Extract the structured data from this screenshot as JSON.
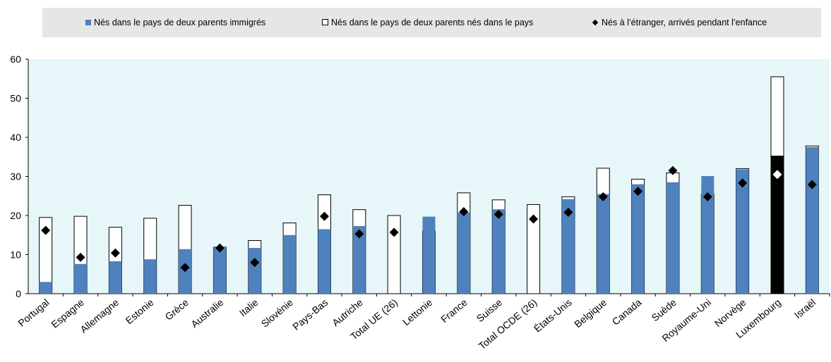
{
  "legend": {
    "item1": "Nés dans le pays de deux parents immigrés",
    "item2": "Nés dans le pays de deux parents nés dans le pays",
    "item3": "Nés à l’étranger, arrivés pendant l’enfance"
  },
  "colors": {
    "blue": "#4e81bd",
    "highlight_fill": "#000000",
    "plot_bg": "#e7f6f8",
    "legend_bg": "#e6e6e6"
  },
  "chart_data": {
    "type": "bar",
    "ylim": [
      0,
      60
    ],
    "yticks": [
      0,
      10,
      20,
      30,
      40,
      50,
      60
    ],
    "grid": false,
    "legend_position": "top",
    "categories": [
      "Portugal",
      "Espagne",
      "Allemagne",
      "Estonie",
      "Grèce",
      "Australie",
      "Italie",
      "Slovénie",
      "Pays-Bas",
      "Autriche",
      "Total UE (26)",
      "Lettonie",
      "France",
      "Suisse",
      "Total OCDE (26)",
      "États-Unis",
      "Belgique",
      "Canada",
      "Suède",
      "Royaume-Uni",
      "Norvège",
      "Luxembourg",
      "Israël"
    ],
    "highlight": "Luxembourg",
    "series": [
      {
        "name": "Nés dans le pays de deux parents immigrés",
        "kind": "bar",
        "values": [
          3,
          7.6,
          8.3,
          8.8,
          11.4,
          11.9,
          11.7,
          15,
          16.5,
          17.3,
          null,
          19.7,
          20.8,
          21.6,
          null,
          24.2,
          25.5,
          28,
          28.5,
          30.1,
          31.8,
          35.3,
          37.5
        ]
      },
      {
        "name": "Nés dans le pays de deux parents nés dans le pays",
        "kind": "bar-outline",
        "values": [
          19.5,
          19.8,
          17,
          19.3,
          22.6,
          11.9,
          13.6,
          18.1,
          25.3,
          21.5,
          20,
          16,
          25.8,
          24,
          22.8,
          24.8,
          32.1,
          29.3,
          30.9,
          25.5,
          32,
          55.5,
          37.8
        ]
      },
      {
        "name": "Nés à l’étranger, arrivés pendant l’enfance",
        "kind": "marker",
        "values": [
          16.2,
          9.3,
          10.4,
          null,
          6.7,
          11.7,
          8,
          null,
          19.8,
          15.3,
          15.7,
          null,
          21,
          20.3,
          19.1,
          20.8,
          24.8,
          26.2,
          31.5,
          24.8,
          28.3,
          30.5,
          27.9
        ]
      }
    ]
  }
}
